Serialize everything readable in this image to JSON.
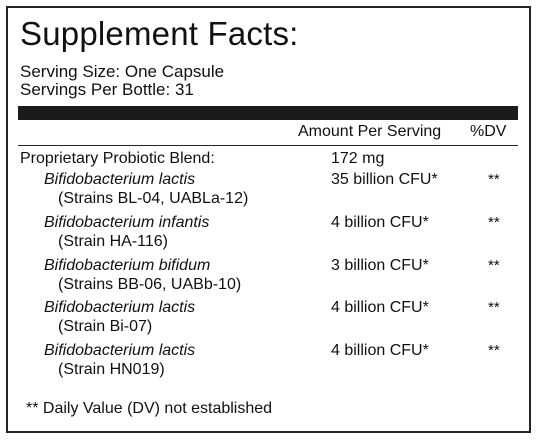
{
  "label": {
    "title": "Supplement Facts:",
    "serving_size": "Serving Size: One Capsule",
    "servings_per_bottle": "Servings Per Bottle: 31",
    "header_amount": "Amount Per Serving",
    "header_dv": "%DV",
    "blend": {
      "name": "Proprietary Probiotic Blend:",
      "amount": "172 mg"
    },
    "ingredients": [
      {
        "name": "Bifidobacterium lactis",
        "strain": "(Strains BL-04, UABLa-12)",
        "amount": "35 billion CFU*",
        "dv": "**"
      },
      {
        "name": "Bifidobacterium infantis",
        "strain": "(Strain HA-116)",
        "amount": "4 billion CFU*",
        "dv": "**"
      },
      {
        "name": "Bifidobacterium bifidum",
        "strain": "(Strains BB-06, UABb-10)",
        "amount": "3 billion CFU*",
        "dv": "**"
      },
      {
        "name": "Bifidobacterium lactis",
        "strain": "(Strain Bi-07)",
        "amount": "4 billion CFU*",
        "dv": "**"
      },
      {
        "name": "Bifidobacterium lactis",
        "strain": "(Strain HN019)",
        "amount": "4 billion CFU*",
        "dv": "**"
      }
    ],
    "footnote": "** Daily Value (DV) not established"
  }
}
